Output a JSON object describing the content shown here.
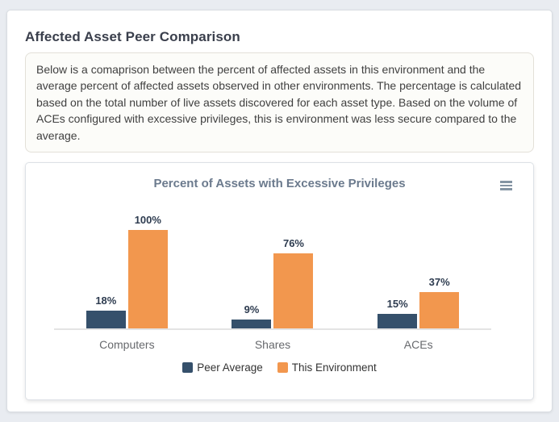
{
  "card": {
    "title": "Affected Asset Peer Comparison",
    "description": "Below is a comaprison between the percent of affected assets in this environment and the average percent of affected assets observed in other environments. The percentage is calculated based on the total number of live assets discovered for each asset type. Based on the volume of ACEs configured with excessive privileges, this is environment was less secure compared to the average."
  },
  "colors": {
    "page_background": "#e9ecf1",
    "card_background": "#ffffff",
    "description_box_background": "#fcfcf9",
    "chart_title_text": "#6b7a8d",
    "data_label_text": "#2e3c50",
    "axis_label_text": "#67696d"
  },
  "icons": {
    "context_menu": "hamburger-menu-icon"
  },
  "chart_data": {
    "type": "bar",
    "title": "Percent of Assets with Excessive Privileges",
    "categories": [
      "Computers",
      "Shares",
      "ACEs"
    ],
    "series": [
      {
        "name": "Peer Average",
        "color": "#35506b",
        "values": [
          18,
          9,
          15
        ]
      },
      {
        "name": "This Environment",
        "color": "#f2974e",
        "values": [
          100,
          76,
          37
        ]
      }
    ],
    "value_suffix": "%",
    "data_labels": true,
    "ylim": [
      0,
      100
    ],
    "grid": false,
    "y_axis_visible": false,
    "legend_position": "bottom"
  }
}
